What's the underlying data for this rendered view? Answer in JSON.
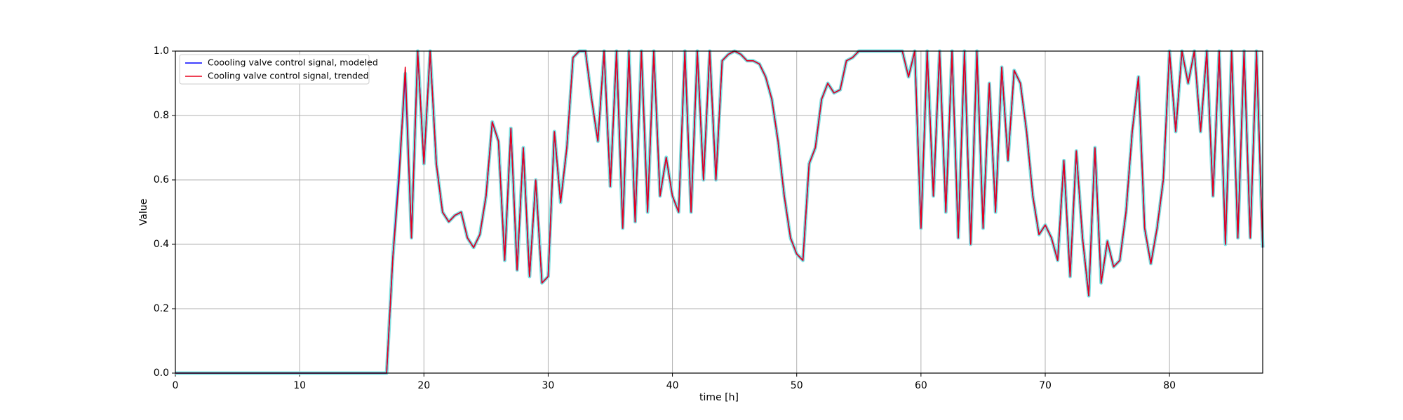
{
  "chart_data": {
    "type": "line",
    "xlabel": "time [h]",
    "ylabel": "Value",
    "x": [
      0,
      17,
      17.5,
      18,
      18.5,
      19,
      19.5,
      20,
      20.5,
      21,
      21.5,
      22,
      22.5,
      23,
      23.5,
      24,
      24.5,
      25,
      25.5,
      26,
      26.5,
      27,
      27.5,
      28,
      28.5,
      29,
      29.5,
      30,
      30.5,
      31,
      31.5,
      32,
      32.5,
      33,
      33.5,
      34,
      34.5,
      35,
      35.5,
      36,
      36.5,
      37,
      37.5,
      38,
      38.5,
      39,
      39.5,
      40,
      40.5,
      41,
      41.5,
      42,
      42.5,
      43,
      43.5,
      44,
      44.5,
      45,
      45.5,
      46,
      46.5,
      47,
      47.5,
      48,
      48.5,
      49,
      49.5,
      50,
      50.5,
      51,
      51.5,
      52,
      52.5,
      53,
      53.5,
      54,
      54.5,
      55,
      55.5,
      56,
      56.5,
      57,
      57.5,
      58,
      58.5,
      59,
      59.5,
      60,
      60.5,
      61,
      61.5,
      62,
      62.5,
      63,
      63.5,
      64,
      64.5,
      65,
      65.5,
      66,
      66.5,
      67,
      67.5,
      68,
      68.5,
      69,
      69.5,
      70,
      70.5,
      71,
      71.5,
      72,
      72.5,
      73,
      73.5,
      74,
      74.5,
      75,
      75.5,
      76,
      76.5,
      77,
      77.5,
      78,
      78.5,
      79,
      79.5,
      80,
      80.5,
      81,
      81.5,
      82,
      82.5,
      83,
      83.5,
      84,
      84.5,
      85,
      85.5,
      86,
      86.5,
      87,
      87.5
    ],
    "series": [
      {
        "name": "Coooling valve control signal, modeled",
        "color": "#0000ff",
        "values": [
          0,
          0,
          0.36,
          0.62,
          0.93,
          0.42,
          1,
          0.65,
          1,
          0.65,
          0.5,
          0.47,
          0.49,
          0.5,
          0.42,
          0.39,
          0.43,
          0.55,
          0.78,
          0.72,
          0.35,
          0.76,
          0.32,
          0.7,
          0.3,
          0.6,
          0.28,
          0.3,
          0.75,
          0.53,
          0.7,
          0.98,
          1,
          1,
          0.85,
          0.72,
          1,
          0.58,
          1,
          0.45,
          1,
          0.47,
          1,
          0.5,
          1,
          0.55,
          0.67,
          0.55,
          0.5,
          1,
          0.5,
          1,
          0.6,
          1,
          0.6,
          0.97,
          0.99,
          1,
          0.99,
          0.97,
          0.97,
          0.96,
          0.92,
          0.85,
          0.72,
          0.55,
          0.42,
          0.37,
          0.35,
          0.65,
          0.7,
          0.85,
          0.9,
          0.87,
          0.88,
          0.97,
          0.98,
          1,
          1,
          1,
          1,
          1,
          1,
          1,
          1,
          0.92,
          1,
          0.45,
          1,
          0.55,
          1,
          0.5,
          1,
          0.42,
          1,
          0.4,
          1,
          0.45,
          0.9,
          0.5,
          0.95,
          0.66,
          0.94,
          0.9,
          0.75,
          0.55,
          0.43,
          0.46,
          0.42,
          0.35,
          0.66,
          0.3,
          0.69,
          0.42,
          0.24,
          0.7,
          0.28,
          0.41,
          0.33,
          0.35,
          0.5,
          0.75,
          0.92,
          0.45,
          0.34,
          0.45,
          0.6,
          1,
          0.75,
          1,
          0.9,
          1,
          0.75,
          1,
          0.55,
          1,
          0.4,
          1,
          0.42,
          1,
          0.42,
          1,
          0.39
        ]
      },
      {
        "name": "Cooling valve control signal, trended",
        "color": "#e8001c",
        "values": [
          0,
          0,
          0.36,
          0.6,
          0.95,
          0.42,
          1,
          0.65,
          1,
          0.65,
          0.5,
          0.47,
          0.49,
          0.5,
          0.42,
          0.39,
          0.43,
          0.55,
          0.78,
          0.72,
          0.35,
          0.76,
          0.32,
          0.7,
          0.3,
          0.6,
          0.28,
          0.3,
          0.75,
          0.53,
          0.7,
          0.98,
          1,
          1,
          0.85,
          0.72,
          1,
          0.58,
          1,
          0.45,
          1,
          0.47,
          1,
          0.5,
          1,
          0.55,
          0.67,
          0.55,
          0.5,
          1,
          0.5,
          1,
          0.6,
          1,
          0.6,
          0.97,
          0.99,
          1,
          0.99,
          0.97,
          0.97,
          0.96,
          0.92,
          0.85,
          0.72,
          0.55,
          0.42,
          0.37,
          0.35,
          0.65,
          0.7,
          0.85,
          0.9,
          0.87,
          0.88,
          0.97,
          0.98,
          1,
          1,
          1,
          1,
          1,
          1,
          1,
          1,
          0.92,
          1,
          0.45,
          1,
          0.55,
          1,
          0.5,
          1,
          0.42,
          1,
          0.4,
          1,
          0.45,
          0.9,
          0.5,
          0.95,
          0.66,
          0.94,
          0.9,
          0.75,
          0.55,
          0.43,
          0.46,
          0.42,
          0.35,
          0.66,
          0.3,
          0.69,
          0.42,
          0.24,
          0.7,
          0.28,
          0.41,
          0.33,
          0.35,
          0.5,
          0.75,
          0.92,
          0.45,
          0.34,
          0.45,
          0.6,
          1,
          0.75,
          1,
          0.9,
          1,
          0.75,
          1,
          0.55,
          1,
          0.4,
          1,
          0.42,
          1,
          0.42,
          1,
          0.39
        ]
      }
    ],
    "xlim": [
      0,
      87.5
    ],
    "ylim": [
      0,
      1
    ],
    "xticks": [
      0,
      10,
      20,
      30,
      40,
      50,
      60,
      70,
      80
    ],
    "yticks": [
      {
        "value": 0,
        "label": "0.0"
      },
      {
        "value": 0.2,
        "label": "0.2"
      },
      {
        "value": 0.4,
        "label": "0.4"
      },
      {
        "value": 0.6,
        "label": "0.6"
      },
      {
        "value": 0.8,
        "label": "0.8"
      },
      {
        "value": 1,
        "label": "1.0"
      }
    ],
    "grid": true,
    "legend": "upper left",
    "halo_color": "#7fe0e0"
  }
}
